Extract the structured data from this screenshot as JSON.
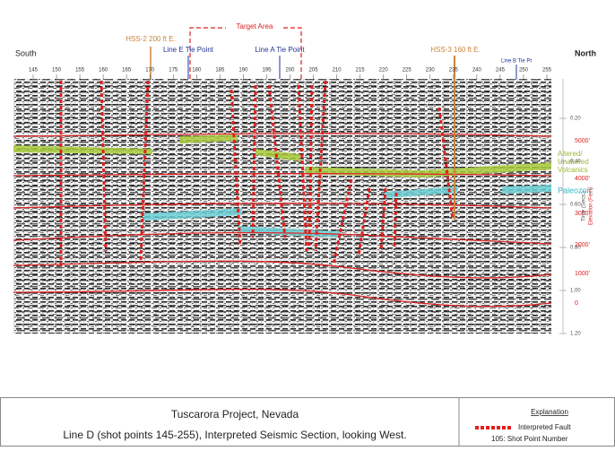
{
  "header": {
    "south": "South",
    "north": "North",
    "target_area": "Target Area"
  },
  "annotations": {
    "hss2": "HSS-2  200 ft E.",
    "line_e": "Line E Tie Point",
    "line_a": "Line A Tie Point",
    "hss3": "HSS-3  160 ft E.",
    "line_b": "Line B Tie Pt"
  },
  "shot_points": [
    145,
    150,
    155,
    160,
    165,
    170,
    175,
    180,
    185,
    190,
    195,
    200,
    205,
    210,
    215,
    220,
    225,
    230,
    235,
    240,
    245,
    250,
    255
  ],
  "time_axis": {
    "title": "Time (Secs.)",
    "labels": [
      "0.20",
      "0.40",
      "0.60",
      "0.80",
      "1.00",
      "1.20"
    ]
  },
  "elevation_axis": {
    "title": "Elevation (Feet)",
    "labels": [
      "5000'",
      "4000'",
      "3000'",
      "2000'",
      "1000'",
      "0"
    ]
  },
  "units": {
    "volcanics": [
      "Altered/",
      "Unaltered",
      "Volcanics"
    ],
    "paleozoic": "Paleozoic"
  },
  "caption": {
    "title": "Tuscarora Project, Nevada",
    "subtitle": "Line D (shot points 145-255), Interpreted Seismic Section, looking West."
  },
  "explanation": {
    "title": "Explanation",
    "fault": "Interpreted Fault",
    "shot_point": "105:  Shot Point Number"
  }
}
